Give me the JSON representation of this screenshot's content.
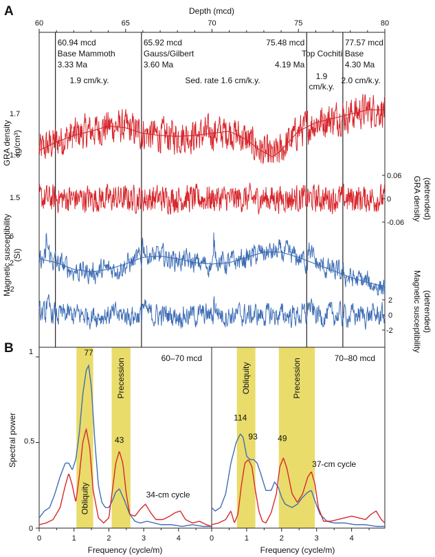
{
  "panel_labels": [
    "A",
    "B"
  ],
  "chart_data": [
    {
      "type": "line",
      "panel": "A",
      "xlabel": "Depth (mcd)",
      "x_ticks": [
        "60",
        "65",
        "70",
        "75",
        "80"
      ],
      "xlim": [
        60,
        80
      ],
      "boundaries": [
        {
          "depth": 60.94,
          "lines": [
            "60.94 mcd",
            "Base Mammoth",
            "3.33 Ma"
          ]
        },
        {
          "depth": 65.92,
          "lines": [
            "65.92 mcd",
            "Gauss/Gilbert",
            "3.60 Ma"
          ]
        },
        {
          "depth": 75.48,
          "lines": [
            "75.48 mcd",
            "Top Cochiti",
            "4.19 Ma"
          ]
        },
        {
          "depth": 77.57,
          "lines": [
            "77.57 mcd",
            "Base",
            "4.30 Ma"
          ]
        }
      ],
      "sed_rates": [
        {
          "lines": [
            "1.9 cm/k.y."
          ]
        },
        {
          "lines": [
            "Sed. rate 1.6 cm/k.y."
          ]
        },
        {
          "lines": [
            "1.9",
            "cm/k.y."
          ]
        },
        {
          "lines": [
            "2.0 cm/k.y."
          ]
        }
      ],
      "gra": {
        "ylabel": "GRA density",
        "yunit": "(g/cm³)",
        "ticks": [
          "1.7",
          "1.6",
          "1.5"
        ],
        "color": "#d7262b",
        "smooth_x": [
          60,
          61,
          62,
          63,
          64,
          65,
          66,
          67,
          68,
          69,
          70,
          71,
          72,
          72.8,
          73.5,
          74,
          75,
          76,
          77,
          78,
          79,
          80
        ],
        "smooth_y": [
          1.615,
          1.635,
          1.65,
          1.66,
          1.672,
          1.668,
          1.655,
          1.65,
          1.648,
          1.65,
          1.655,
          1.66,
          1.64,
          1.615,
          1.6,
          1.615,
          1.66,
          1.68,
          1.69,
          1.7,
          1.71,
          1.71
        ]
      },
      "gra_detrended": {
        "ylabel": "GRA density",
        "ylabel2": "(detrended)",
        "ticks": [
          "0.06",
          "0",
          "-0.06"
        ],
        "color": "#d7262b"
      },
      "ms": {
        "ylabel": "Magnetic susceptibility",
        "yunit": "(SI)",
        "ticks": [
          "6",
          "2",
          "-2"
        ],
        "color": "#3d6db5",
        "smooth_x": [
          60,
          61,
          62,
          63,
          64,
          65,
          66,
          67,
          68,
          69,
          70,
          71,
          72,
          73,
          74,
          75,
          76,
          77,
          78,
          79,
          80
        ],
        "smooth_y": [
          2.6,
          2.0,
          1.0,
          0.6,
          1.0,
          1.8,
          2.8,
          3.0,
          2.6,
          2.0,
          1.8,
          2.0,
          2.8,
          3.6,
          3.6,
          2.8,
          1.8,
          0.8,
          -0.2,
          -1.0,
          -1.6
        ]
      },
      "ms_detrended": {
        "ylabel": "Magnetic susceptibility",
        "ylabel2": "(detrended)",
        "ticks": [
          "2",
          "0",
          "-2"
        ],
        "color": "#3d6db5"
      }
    },
    {
      "type": "line",
      "panel": "B",
      "range_label": "60–70 mcd",
      "xlabel": "Frequency (cycle/m)",
      "ylabel": "Spectral power",
      "x_ticks": [
        "0",
        "1",
        "2",
        "3",
        "4"
      ],
      "y_ticks": [
        "1",
        "0.5",
        "0"
      ],
      "xlim": [
        0,
        4.95
      ],
      "ylim": [
        0,
        1
      ],
      "bands": [
        {
          "x0": 1.07,
          "x1": 1.55,
          "label": "Obliquity"
        },
        {
          "x0": 2.08,
          "x1": 2.62,
          "label": "Precession"
        }
      ],
      "peak_labels": [
        {
          "text": "77",
          "x": 1.42,
          "y": 1.0
        },
        {
          "text": "43",
          "x": 2.3,
          "y": 0.49
        },
        {
          "text": "34-cm cycle",
          "x": 3.7,
          "y": 0.17
        }
      ],
      "series": [
        {
          "color": "#3d6db5",
          "x": [
            0,
            0.15,
            0.3,
            0.45,
            0.6,
            0.75,
            0.85,
            0.95,
            1.05,
            1.15,
            1.25,
            1.35,
            1.42,
            1.5,
            1.6,
            1.7,
            1.8,
            1.9,
            2.0,
            2.1,
            2.2,
            2.3,
            2.45,
            2.6,
            2.75,
            2.9,
            3.1,
            3.3,
            3.5,
            3.8,
            4.1,
            4.4,
            4.7,
            4.95
          ],
          "y": [
            0.06,
            0.1,
            0.12,
            0.2,
            0.3,
            0.38,
            0.38,
            0.34,
            0.4,
            0.55,
            0.78,
            0.92,
            0.95,
            0.82,
            0.5,
            0.25,
            0.15,
            0.12,
            0.12,
            0.16,
            0.21,
            0.23,
            0.16,
            0.08,
            0.04,
            0.03,
            0.04,
            0.03,
            0.02,
            0.02,
            0.01,
            0.02,
            0.01,
            0.01
          ]
        },
        {
          "color": "#d7262b",
          "x": [
            0,
            0.2,
            0.4,
            0.6,
            0.75,
            0.85,
            0.95,
            1.05,
            1.15,
            1.25,
            1.35,
            1.45,
            1.55,
            1.7,
            1.85,
            2.0,
            2.1,
            2.2,
            2.3,
            2.4,
            2.5,
            2.6,
            2.75,
            2.9,
            3.05,
            3.2,
            3.35,
            3.55,
            3.75,
            3.9,
            4.05,
            4.2,
            4.4,
            4.6,
            4.8,
            4.95
          ],
          "y": [
            0.02,
            0.03,
            0.05,
            0.12,
            0.25,
            0.32,
            0.25,
            0.15,
            0.3,
            0.5,
            0.58,
            0.47,
            0.22,
            0.06,
            0.03,
            0.06,
            0.22,
            0.38,
            0.45,
            0.38,
            0.2,
            0.08,
            0.07,
            0.11,
            0.14,
            0.09,
            0.05,
            0.05,
            0.07,
            0.09,
            0.1,
            0.05,
            0.03,
            0.04,
            0.02,
            0.01
          ]
        }
      ]
    },
    {
      "type": "line",
      "panel": "B",
      "range_label": "70–80 mcd",
      "xlabel": "Frequency (cycle/m)",
      "x_ticks": [
        "0",
        "1",
        "2",
        "3",
        "4"
      ],
      "xlim": [
        0,
        4.95
      ],
      "ylim": [
        0,
        1
      ],
      "bands": [
        {
          "x0": 0.72,
          "x1": 1.25,
          "label": "Obliquity"
        },
        {
          "x0": 1.92,
          "x1": 2.95,
          "label": "Precession"
        }
      ],
      "peak_labels": [
        {
          "text": "114",
          "x": 0.82,
          "y": 0.62
        },
        {
          "text": "93",
          "x": 1.18,
          "y": 0.51
        },
        {
          "text": "49",
          "x": 2.02,
          "y": 0.5
        },
        {
          "text": "37-cm cycle",
          "x": 3.5,
          "y": 0.35
        }
      ],
      "series": [
        {
          "color": "#3d6db5",
          "x": [
            0,
            0.1,
            0.25,
            0.4,
            0.55,
            0.7,
            0.82,
            0.9,
            1.0,
            1.1,
            1.2,
            1.3,
            1.4,
            1.55,
            1.7,
            1.8,
            1.9,
            2.0,
            2.1,
            2.2,
            2.3,
            2.45,
            2.6,
            2.75,
            2.85,
            2.95,
            3.1,
            3.3,
            3.5,
            3.8,
            4.1,
            4.4,
            4.7,
            4.95
          ],
          "y": [
            0.12,
            0.1,
            0.12,
            0.2,
            0.38,
            0.5,
            0.55,
            0.53,
            0.42,
            0.4,
            0.4,
            0.38,
            0.32,
            0.22,
            0.22,
            0.27,
            0.24,
            0.18,
            0.14,
            0.13,
            0.12,
            0.14,
            0.18,
            0.21,
            0.22,
            0.16,
            0.08,
            0.04,
            0.03,
            0.03,
            0.02,
            0.02,
            0.01,
            0.01
          ]
        },
        {
          "color": "#d7262b",
          "x": [
            0,
            0.2,
            0.4,
            0.55,
            0.65,
            0.75,
            0.85,
            0.95,
            1.05,
            1.15,
            1.25,
            1.35,
            1.45,
            1.55,
            1.7,
            1.85,
            1.95,
            2.05,
            2.15,
            2.3,
            2.45,
            2.6,
            2.75,
            2.85,
            2.95,
            3.05,
            3.2,
            3.4,
            3.6,
            3.8,
            4.0,
            4.2,
            4.4,
            4.55,
            4.7,
            4.85,
            4.95
          ],
          "y": [
            0.02,
            0.03,
            0.05,
            0.1,
            0.03,
            0.08,
            0.25,
            0.38,
            0.4,
            0.36,
            0.22,
            0.1,
            0.04,
            0.03,
            0.09,
            0.2,
            0.36,
            0.41,
            0.35,
            0.2,
            0.15,
            0.2,
            0.3,
            0.33,
            0.26,
            0.12,
            0.04,
            0.04,
            0.05,
            0.06,
            0.07,
            0.06,
            0.05,
            0.08,
            0.1,
            0.05,
            0.03
          ]
        }
      ]
    }
  ]
}
